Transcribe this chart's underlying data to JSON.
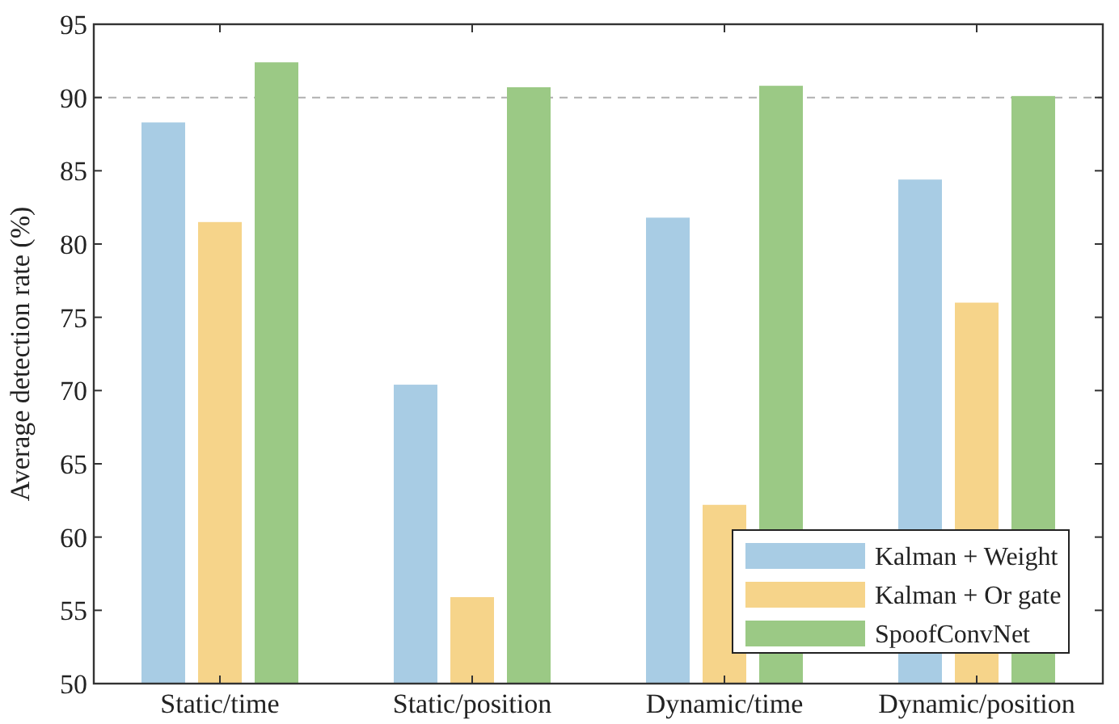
{
  "chart_data": {
    "type": "bar",
    "ylabel": "Average detection rate (%)",
    "categories": [
      "Static/time",
      "Static/position",
      "Dynamic/time",
      "Dynamic/position"
    ],
    "series": [
      {
        "name": "Kalman + Weight",
        "color": "#a8cce4",
        "values": [
          88.3,
          70.4,
          81.8,
          84.4
        ]
      },
      {
        "name": "Kalman + Or gate",
        "color": "#f6d48a",
        "values": [
          81.5,
          55.9,
          62.2,
          76.0
        ]
      },
      {
        "name": "SpoofConvNet",
        "color": "#9bc985",
        "values": [
          92.4,
          90.7,
          90.8,
          90.1
        ]
      }
    ],
    "ylim": [
      50,
      95
    ],
    "yticks": [
      50,
      55,
      60,
      65,
      70,
      75,
      80,
      85,
      90,
      95
    ],
    "legend": "bottom right",
    "ref_lines": [
      {
        "axis": "y",
        "value": 90,
        "color": "#b0b0b0",
        "line_style": "dashed"
      }
    ]
  }
}
